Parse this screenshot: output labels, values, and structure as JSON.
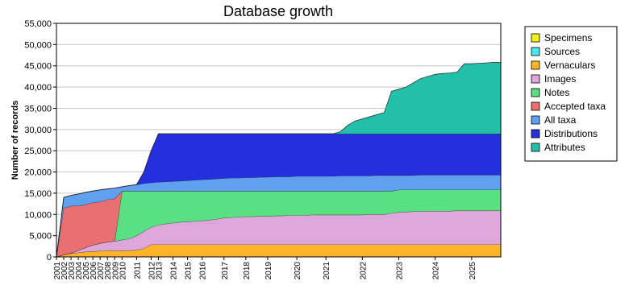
{
  "chart_data": {
    "type": "stacked-area",
    "title": "Database growth",
    "y_label": "Number of records",
    "categories": [
      "2001",
      "2002",
      "2003",
      "2004",
      "2005",
      "2006",
      "2007",
      "2008",
      "2009",
      "2010",
      null,
      "2011",
      null,
      "2012",
      "2013",
      null,
      "2014",
      null,
      "2015",
      null,
      "2016",
      null,
      null,
      "2017",
      null,
      null,
      "2018",
      null,
      null,
      "2019",
      null,
      null,
      null,
      "2020",
      null,
      null,
      null,
      "2021",
      null,
      null,
      null,
      null,
      "2022",
      null,
      null,
      null,
      null,
      "2023",
      null,
      null,
      null,
      null,
      "2024",
      null,
      null,
      null,
      null,
      "2025",
      null,
      null,
      null,
      null
    ],
    "series": [
      {
        "name": "Specimens",
        "color": "#f0f020",
        "values": [
          0,
          0,
          0,
          0,
          0,
          0,
          0,
          0,
          0,
          0,
          0,
          0,
          0,
          0,
          0,
          0,
          0,
          0,
          0,
          0,
          0,
          0,
          0,
          0,
          0,
          0,
          0,
          0,
          0,
          0,
          0,
          0,
          0,
          0,
          0,
          0,
          0,
          0,
          0,
          0,
          0,
          0,
          0,
          0,
          0,
          0,
          0,
          0,
          0,
          0,
          0,
          0,
          0,
          0,
          0,
          0,
          0,
          0,
          0,
          0,
          0,
          0
        ]
      },
      {
        "name": "Sources",
        "color": "#50e8f0",
        "values": [
          0,
          0,
          0,
          0,
          0,
          0,
          0,
          0,
          0,
          0,
          0,
          0,
          0,
          0,
          0,
          0,
          0,
          0,
          0,
          0,
          0,
          0,
          0,
          0,
          0,
          0,
          0,
          0,
          0,
          0,
          0,
          0,
          0,
          0,
          0,
          0,
          0,
          0,
          0,
          0,
          0,
          0,
          0,
          0,
          0,
          0,
          0,
          0,
          0,
          0,
          0,
          0,
          0,
          0,
          0,
          0,
          0,
          0,
          0,
          0,
          0,
          0
        ]
      },
      {
        "name": "Vernaculars",
        "color": "#ffb428",
        "values": [
          0,
          500,
          800,
          1000,
          1200,
          1300,
          1400,
          1500,
          1500,
          1500,
          1500,
          1600,
          2000,
          2900,
          2900,
          2900,
          2900,
          2900,
          2900,
          2900,
          2900,
          2900,
          2900,
          2900,
          2900,
          2900,
          2900,
          2900,
          2900,
          2900,
          2900,
          2900,
          2900,
          2900,
          2900,
          2900,
          2900,
          2900,
          2900,
          2900,
          2900,
          2900,
          2900,
          2900,
          2900,
          2900,
          2900,
          2900,
          2900,
          2900,
          2900,
          2900,
          2900,
          2900,
          2900,
          2900,
          2900,
          2900,
          2900,
          2900,
          2900,
          2900
        ]
      },
      {
        "name": "Images",
        "color": "#dfa6d9",
        "values": [
          0,
          0,
          100,
          500,
          1000,
          1500,
          1800,
          2000,
          2200,
          2500,
          2800,
          3400,
          4000,
          4100,
          4600,
          4900,
          5100,
          5300,
          5400,
          5500,
          5600,
          5800,
          6000,
          6300,
          6400,
          6500,
          6600,
          6600,
          6700,
          6700,
          6800,
          6800,
          6900,
          6900,
          6900,
          7000,
          7000,
          7000,
          7000,
          7000,
          7000,
          7000,
          7000,
          7100,
          7100,
          7100,
          7400,
          7600,
          7700,
          7800,
          7800,
          7900,
          7900,
          7900,
          7900,
          8000,
          8000,
          8000,
          8000,
          8000,
          8000,
          8000
        ]
      },
      {
        "name": "Notes",
        "color": "#58e082",
        "values": [
          0,
          0,
          0,
          0,
          0,
          0,
          0,
          0,
          0,
          11500,
          11200,
          10500,
          9500,
          8500,
          8000,
          7700,
          7500,
          7300,
          7200,
          7100,
          7000,
          6800,
          6600,
          6300,
          6200,
          6100,
          6000,
          6000,
          5900,
          5900,
          5800,
          5800,
          5700,
          5700,
          5700,
          5600,
          5600,
          5600,
          5600,
          5600,
          5600,
          5600,
          5600,
          5500,
          5500,
          5500,
          5200,
          5300,
          5200,
          5100,
          5100,
          5000,
          5000,
          5000,
          5000,
          4900,
          4900,
          4900,
          4900,
          4900,
          4900,
          4900
        ]
      },
      {
        "name": "Accepted taxa",
        "color": "#e87070",
        "values": [
          0,
          11000,
          11100,
          10500,
          10100,
          10000,
          9800,
          10000,
          10000,
          0,
          0,
          0,
          0,
          0,
          0,
          0,
          0,
          0,
          0,
          0,
          0,
          0,
          0,
          0,
          0,
          0,
          0,
          0,
          0,
          0,
          0,
          0,
          0,
          0,
          0,
          0,
          0,
          0,
          0,
          0,
          0,
          0,
          0,
          0,
          0,
          0,
          0,
          0,
          0,
          0,
          0,
          0,
          0,
          0,
          0,
          0,
          0,
          0,
          0,
          0,
          0,
          0
        ]
      },
      {
        "name": "All taxa",
        "color": "#60a0f0",
        "values": [
          0,
          2500,
          2500,
          2800,
          2900,
          2700,
          2800,
          2500,
          2500,
          1000,
          1300,
          1500,
          1800,
          2000,
          2100,
          2200,
          2300,
          2400,
          2500,
          2600,
          2700,
          2800,
          2900,
          3000,
          3100,
          3100,
          3200,
          3200,
          3300,
          3300,
          3400,
          3400,
          3400,
          3500,
          3500,
          3500,
          3500,
          3500,
          3500,
          3600,
          3600,
          3600,
          3600,
          3600,
          3700,
          3700,
          3700,
          3400,
          3400,
          3400,
          3500,
          3500,
          3500,
          3500,
          3500,
          3500,
          3500,
          3500,
          3500,
          3500,
          3500,
          3500
        ]
      },
      {
        "name": "Distributions",
        "color": "#2430e0",
        "values": [
          0,
          0,
          0,
          0,
          0,
          0,
          0,
          0,
          0,
          0,
          0,
          0,
          2700,
          7500,
          11400,
          11300,
          11200,
          11100,
          11000,
          10900,
          10800,
          10700,
          10600,
          10500,
          10400,
          10400,
          10300,
          10300,
          10200,
          10200,
          10100,
          10100,
          10100,
          10000,
          10000,
          10000,
          10000,
          10000,
          10000,
          9900,
          9900,
          9900,
          9900,
          9900,
          9800,
          9800,
          9800,
          9800,
          9800,
          9800,
          9700,
          9700,
          9700,
          9700,
          9700,
          9700,
          9700,
          9700,
          9700,
          9700,
          9700,
          9700
        ]
      },
      {
        "name": "Attributes",
        "color": "#22c0a8",
        "values": [
          0,
          0,
          0,
          0,
          0,
          0,
          0,
          0,
          0,
          0,
          0,
          0,
          0,
          0,
          0,
          0,
          0,
          0,
          0,
          0,
          0,
          0,
          0,
          0,
          0,
          0,
          0,
          0,
          0,
          0,
          0,
          0,
          0,
          0,
          0,
          0,
          0,
          0,
          0,
          500,
          2000,
          3000,
          3500,
          4000,
          4500,
          5000,
          10000,
          10500,
          11000,
          12000,
          13000,
          13500,
          14000,
          14200,
          14300,
          14500,
          16500,
          16500,
          16600,
          16700,
          16800,
          16800
        ]
      }
    ],
    "ylim": [
      0,
      55000
    ],
    "yticks": [
      0,
      {
        "value": 5000,
        "label": "5,000"
      },
      {
        "value": 10000,
        "label": "10,000"
      },
      {
        "value": 15000,
        "label": "15,000"
      },
      {
        "value": 20000,
        "label": "20,000"
      },
      {
        "value": 25000,
        "label": "25,000"
      },
      {
        "value": 30000,
        "label": "30,000"
      },
      {
        "value": 35000,
        "label": "35,000"
      },
      {
        "value": 40000,
        "label": "40,000"
      },
      {
        "value": 45000,
        "label": "45,000"
      },
      {
        "value": 50000,
        "label": "50,000"
      },
      {
        "value": 55000,
        "label": "55,000"
      }
    ],
    "grid": true
  }
}
